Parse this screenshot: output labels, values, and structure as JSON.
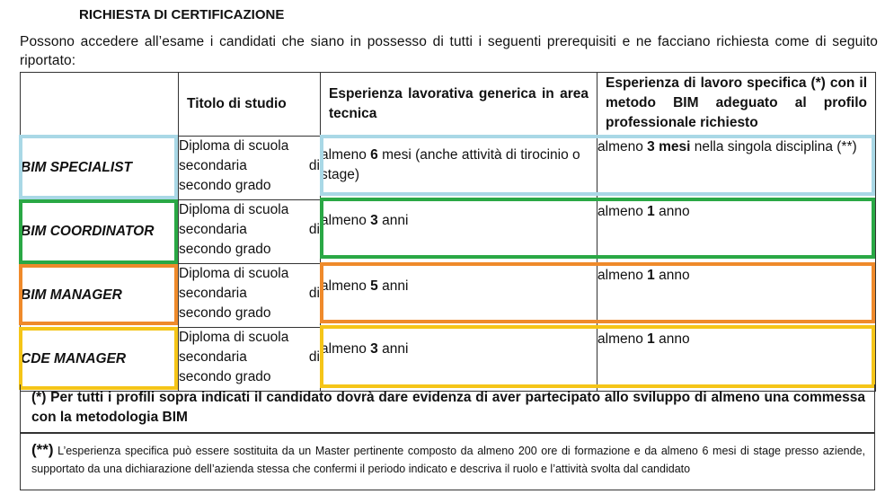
{
  "title": "RICHIESTA DI CERTIFICAZIONE",
  "intro": "Possono accedere all’esame i candidati che siano in possesso di tutti i seguenti prerequisiti e ne facciano richiesta come di seguito riportato:",
  "headers": {
    "col1": "",
    "col2": "Titolo di studio",
    "col3": "Esperienza lavorativa generica in area tecnica",
    "col4": "Esperienza di lavoro specifica (*) con il metodo BIM adeguato al profilo professionale richiesto"
  },
  "diploma": {
    "line1": "Diploma di scuola",
    "line2a": "secondaria",
    "line2b": "di",
    "line3": "secondo grado"
  },
  "rows": [
    {
      "label": "BIM SPECIALIST",
      "color": "#a9d8e6",
      "generic_pre": "almeno ",
      "generic_bold": "6",
      "generic_post": " mesi (anche attività di tirocinio o stage)",
      "specific_pre": "almeno ",
      "specific_bold": "3 mesi",
      "specific_post": "  nella singola disciplina (**)"
    },
    {
      "label": "BIM COORDINATOR",
      "color": "#2aa845",
      "generic_pre": "almeno ",
      "generic_bold": "3",
      "generic_post": " anni",
      "specific_pre": "almeno ",
      "specific_bold": "1",
      "specific_post": " anno"
    },
    {
      "label": "BIM MANAGER",
      "color": "#ef8a2b",
      "generic_pre": "almeno ",
      "generic_bold": "5",
      "generic_post": " anni",
      "specific_pre": "almeno ",
      "specific_bold": "1",
      "specific_post": " anno"
    },
    {
      "label": "CDE MANAGER",
      "color": "#f5c518",
      "generic_pre": "almeno ",
      "generic_bold": "3",
      "generic_post": " anni",
      "specific_pre": "almeno ",
      "specific_bold": "1",
      "specific_post": " anno"
    }
  ],
  "note1": "(*) Per tutti i profili sopra indicati il candidato dovrà dare evidenza di aver partecipato allo sviluppo di almeno una commessa con la metodologia BIM",
  "note2_marker": "(**)",
  "note2": " L’esperienza specifica può essere sostituita da un Master pertinente composto da almeno 200 ore di formazione e da almeno 6 mesi di stage presso aziende, supportato da una dichiarazione dell’azienda stessa che confermi il periodo indicato e descriva il ruolo e l’attività svolta dal candidato"
}
